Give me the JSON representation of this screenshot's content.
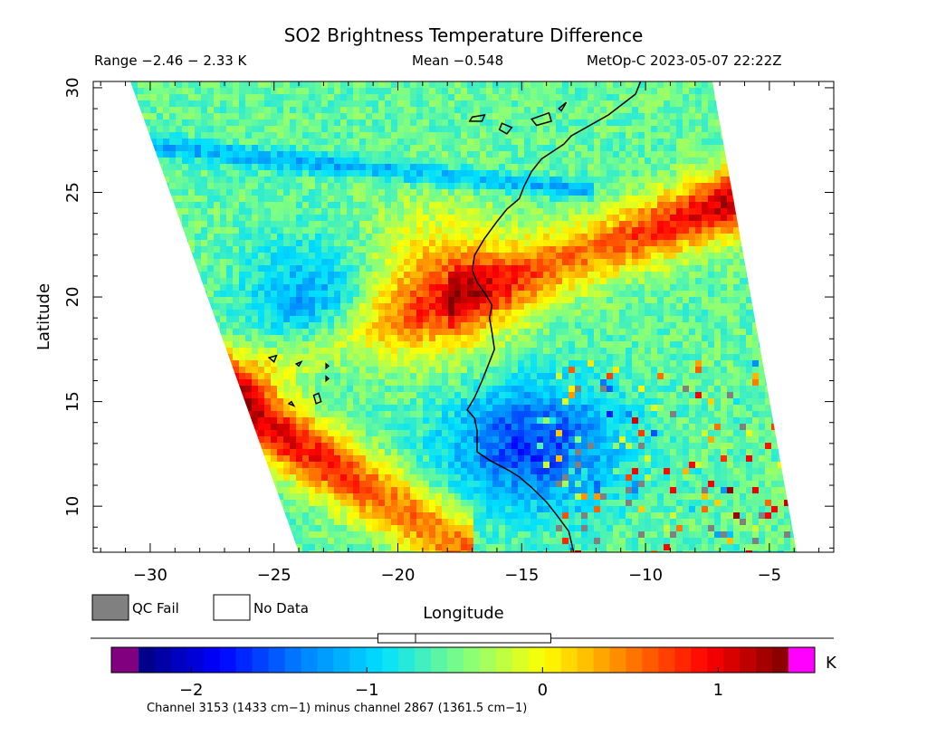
{
  "header": {
    "title": "SO2 Brightness Temperature Difference",
    "range": "Range −2.46 − 2.33 K",
    "mean": "Mean −0.548",
    "satellite_time": "MetOp-C 2023-05-07 22:22Z"
  },
  "axes": {
    "ylabel": "Latitude",
    "xlabel": "Longitude",
    "lat_ticks": [
      {
        "value": 10,
        "label": "10"
      },
      {
        "value": 15,
        "label": "15"
      },
      {
        "value": 20,
        "label": "20"
      },
      {
        "value": 25,
        "label": "25"
      },
      {
        "value": 30,
        "label": "30"
      }
    ],
    "lon_ticks": [
      {
        "value": -30,
        "label": "−30"
      },
      {
        "value": -25,
        "label": "−25"
      },
      {
        "value": -20,
        "label": "−20"
      },
      {
        "value": -15,
        "label": "−15"
      },
      {
        "value": -10,
        "label": "−10"
      },
      {
        "value": -5,
        "label": "−5"
      }
    ],
    "lon_range": [
      -32.3,
      -2.4
    ],
    "lat_range": [
      7.8,
      30.3
    ]
  },
  "legend": {
    "qc_fail_label": "QC Fail",
    "qc_fail_color": "#808080",
    "no_data_label": "No Data",
    "no_data_color": "#ffffff"
  },
  "colorbar": {
    "unit": "K",
    "range": [
      -2.3,
      1.4
    ],
    "underflow_color": "#800080",
    "overflow_color": "#ff00ff",
    "ticks": [
      {
        "value": -2,
        "label": "−2"
      },
      {
        "value": -1,
        "label": "−1"
      },
      {
        "value": 0,
        "label": "0"
      },
      {
        "value": 1,
        "label": "1"
      }
    ],
    "stops": [
      "#00007f",
      "#0000ff",
      "#0080ff",
      "#00e0ff",
      "#80ff80",
      "#ffff00",
      "#ff8000",
      "#ff0000",
      "#7f0000"
    ],
    "caption": "Channel 3153 (1433 cm−1) minus channel 2867 (1361.5 cm−1)",
    "box_plot": {
      "min": -2.46,
      "q1": -1.7,
      "median": -0.63,
      "q3": -0.1,
      "max": 2.33
    }
  },
  "map": {
    "swath_corners_lonlat": [
      [
        -30.8,
        30.3
      ],
      [
        -7.3,
        30.3
      ],
      [
        -3.9,
        7.8
      ],
      [
        -24.0,
        7.8
      ]
    ],
    "coastline_mainland": [
      [
        -10.2,
        30.3
      ],
      [
        -10.4,
        29.7
      ],
      [
        -11.5,
        28.7
      ],
      [
        -13.0,
        27.7
      ],
      [
        -13.3,
        27.3
      ],
      [
        -14.2,
        26.6
      ],
      [
        -14.6,
        26.0
      ],
      [
        -14.9,
        25.3
      ],
      [
        -15.1,
        24.7
      ],
      [
        -15.6,
        24.2
      ],
      [
        -16.0,
        23.6
      ],
      [
        -16.5,
        22.8
      ],
      [
        -16.9,
        22.0
      ],
      [
        -17.0,
        21.3
      ],
      [
        -16.8,
        20.7
      ],
      [
        -16.5,
        20.2
      ],
      [
        -16.2,
        19.6
      ],
      [
        -16.3,
        19.0
      ],
      [
        -16.2,
        18.3
      ],
      [
        -16.1,
        17.5
      ],
      [
        -16.4,
        16.6
      ],
      [
        -16.6,
        16.0
      ],
      [
        -16.9,
        15.2
      ],
      [
        -17.2,
        14.6
      ],
      [
        -16.9,
        14.2
      ],
      [
        -16.8,
        13.6
      ],
      [
        -16.8,
        12.6
      ],
      [
        -16.3,
        12.2
      ],
      [
        -15.5,
        11.7
      ],
      [
        -15.1,
        11.4
      ],
      [
        -14.6,
        10.9
      ],
      [
        -14.0,
        10.2
      ],
      [
        -13.6,
        9.6
      ],
      [
        -13.1,
        8.8
      ],
      [
        -12.9,
        7.8
      ]
    ],
    "islands": [
      [
        [
          -14.6,
          28.5
        ],
        [
          -13.9,
          28.8
        ],
        [
          -13.8,
          28.4
        ],
        [
          -14.4,
          28.2
        ]
      ],
      [
        [
          -15.8,
          28.3
        ],
        [
          -15.4,
          28.1
        ],
        [
          -15.6,
          27.8
        ],
        [
          -15.9,
          28.0
        ]
      ],
      [
        [
          -17.0,
          28.6
        ],
        [
          -16.5,
          28.7
        ],
        [
          -16.6,
          28.4
        ],
        [
          -17.1,
          28.4
        ]
      ],
      [
        [
          -13.5,
          29.0
        ],
        [
          -13.2,
          29.3
        ],
        [
          -13.4,
          28.9
        ]
      ],
      [
        [
          -25.2,
          17.1
        ],
        [
          -24.9,
          17.2
        ],
        [
          -25.0,
          16.9
        ]
      ],
      [
        [
          -24.1,
          16.8
        ],
        [
          -23.9,
          16.9
        ],
        [
          -24.0,
          16.7
        ]
      ],
      [
        [
          -23.4,
          15.3
        ],
        [
          -23.2,
          15.4
        ],
        [
          -23.1,
          15.0
        ],
        [
          -23.3,
          14.9
        ]
      ],
      [
        [
          -24.4,
          14.9
        ],
        [
          -24.3,
          15.0
        ],
        [
          -24.2,
          14.8
        ]
      ],
      [
        [
          -22.9,
          16.2
        ],
        [
          -22.8,
          16.1
        ],
        [
          -22.9,
          16.0
        ]
      ],
      [
        [
          -22.9,
          16.8
        ],
        [
          -22.8,
          16.7
        ],
        [
          -22.9,
          16.6
        ]
      ]
    ]
  }
}
